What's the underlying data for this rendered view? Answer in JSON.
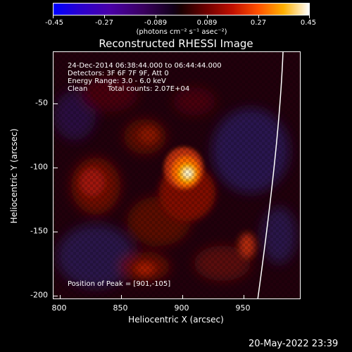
{
  "colorbar": {
    "ticks": [
      "-0.45",
      "-0.27",
      "-0.089",
      "0.089",
      "0.27",
      "0.45"
    ],
    "units": "(photons cm⁻² s⁻¹ asec⁻²)"
  },
  "title": "Reconstructed RHESSI Image",
  "info": {
    "time_range": "24-Dec-2014 06:38:44.000 to 06:44:44.000",
    "detectors": "Detectors: 3F 6F 7F 9F, Att 0",
    "energy": "Energy Range: 3.0 - 6.0 keV",
    "algorithm": "Clean",
    "counts": "Total counts: 2.07E+04",
    "peak": "Position of Peak = [901,-105]"
  },
  "axes": {
    "xlabel": "Heliocentric X (arcsec)",
    "ylabel": "Heliocentric Y (arcsec)",
    "xticks": [
      "800",
      "850",
      "900",
      "950"
    ],
    "yticks": [
      "-50",
      "-100",
      "-150",
      "-200"
    ]
  },
  "timestamp": "20-May-2022 23:39",
  "colors": {
    "background": "#000000",
    "axes": "#ffffff",
    "limb_line": "#ffffff"
  }
}
